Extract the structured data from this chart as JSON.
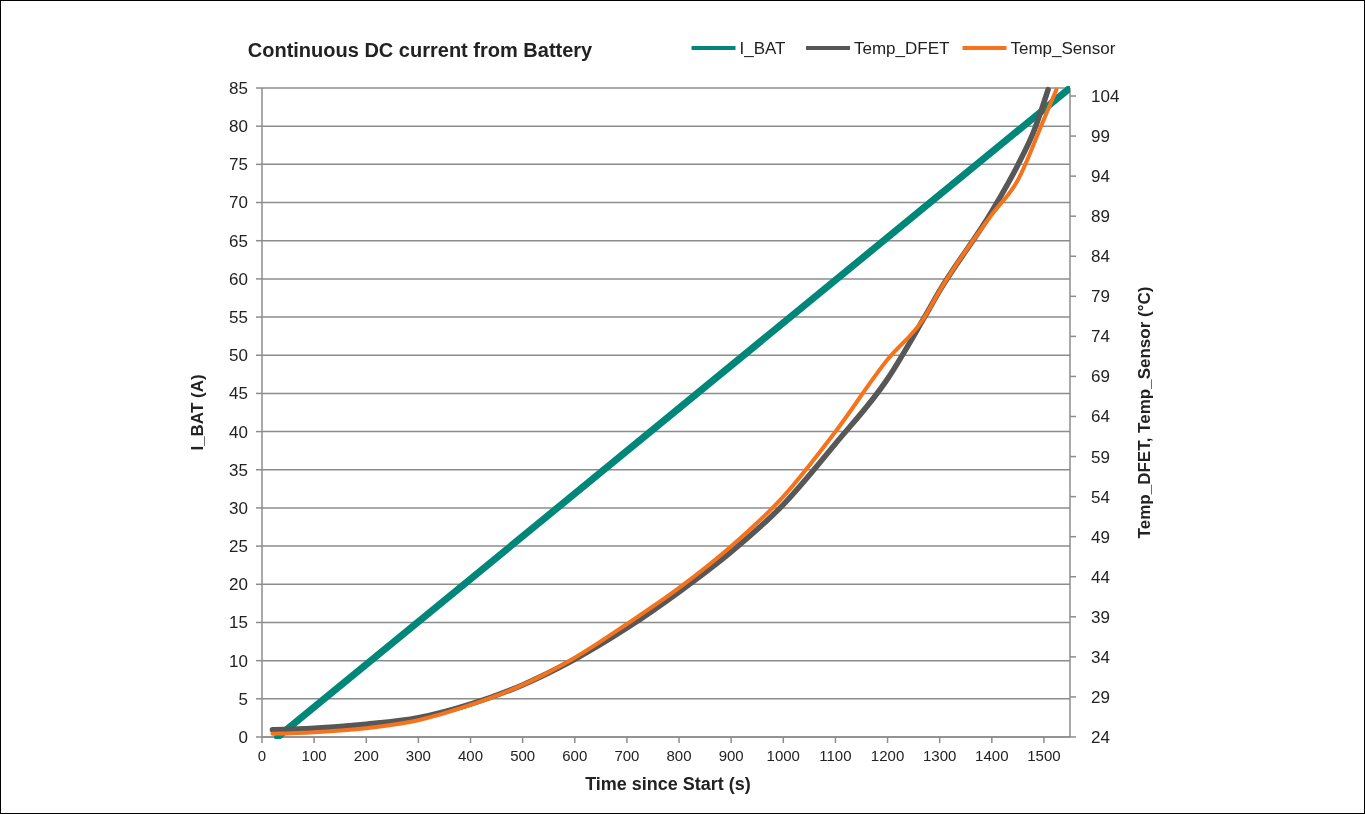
{
  "chart_data": {
    "type": "line",
    "title": "Continuous DC current from Battery",
    "xlabel": "Time since Start (s)",
    "ylabel": "I_BAT (A)",
    "y2label": "Temp_DFET, Temp_Sensor (°C)",
    "xlim": [
      0,
      1550
    ],
    "xticks": [
      0,
      100,
      200,
      300,
      400,
      500,
      600,
      700,
      800,
      900,
      1000,
      1100,
      1200,
      1300,
      1400,
      1500
    ],
    "ylim": [
      0,
      85
    ],
    "yticks": [
      0,
      5,
      10,
      15,
      20,
      25,
      30,
      35,
      40,
      45,
      50,
      55,
      60,
      65,
      70,
      75,
      80,
      85
    ],
    "y2lim": [
      24,
      105
    ],
    "y2ticks": [
      24,
      29,
      34,
      39,
      44,
      49,
      54,
      59,
      64,
      69,
      74,
      79,
      84,
      89,
      94,
      99,
      104
    ],
    "grid": "y",
    "legend": "top right",
    "marker": "none",
    "line_style": "solid",
    "series": [
      {
        "name": "I_BAT",
        "color": "#00877a",
        "x": [
          30,
          1550
        ],
        "values": [
          0,
          85
        ]
      },
      {
        "name": "Temp_DFET",
        "color": "#575757",
        "axis": "y2",
        "x": [
          20,
          100,
          200,
          300,
          400,
          500,
          600,
          700,
          800,
          900,
          1000,
          1100,
          1200,
          1270,
          1300,
          1400,
          1450,
          1480,
          1508
        ],
        "values": [
          24.9,
          25.1,
          25.6,
          26.4,
          28.1,
          30.5,
          33.7,
          37.6,
          42.1,
          47.1,
          53.0,
          60.6,
          68.7,
          76.3,
          79.7,
          89.6,
          95.4,
          99.5,
          104.8
        ]
      },
      {
        "name": "Temp_Sensor",
        "color": "#f5731c",
        "axis": "y2",
        "x": [
          20,
          100,
          200,
          300,
          400,
          500,
          600,
          700,
          800,
          900,
          1000,
          1100,
          1200,
          1270,
          1300,
          1400,
          1450,
          1500,
          1524
        ],
        "values": [
          24.4,
          24.6,
          25.1,
          26.1,
          28.0,
          30.5,
          33.9,
          38.1,
          42.6,
          47.8,
          54.0,
          62.1,
          71.1,
          76.3,
          79.7,
          89.2,
          93.5,
          101.1,
          104.8
        ]
      }
    ]
  }
}
